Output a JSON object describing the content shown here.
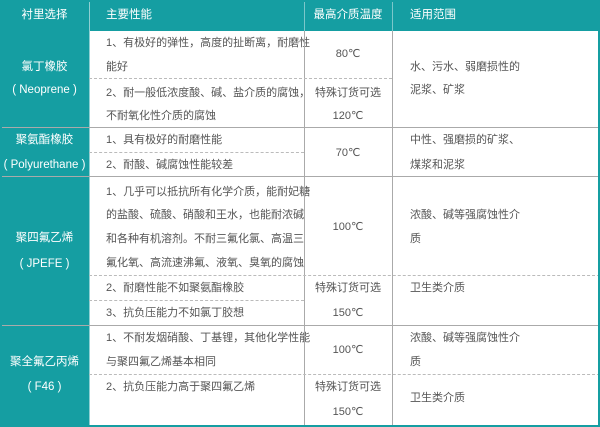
{
  "header": {
    "col1": "衬里选择",
    "col2": "主要性能",
    "col3": "最高介质温度",
    "col4": "适用范围"
  },
  "rows": [
    {
      "name": "氯丁橡胶",
      "name_en": "( Neoprene )",
      "props": [
        "1、有极好的弹性，高度的扯断离，耐磨性",
        "能好",
        "2、耐一般低浓度酸、碱、盐介质的腐蚀，",
        "不耐氧化性介质的腐蚀"
      ],
      "temp": [
        "80℃",
        "特殊订货可选",
        "120℃"
      ],
      "scope": [
        "水、污水、弱磨损性的",
        "泥浆、矿浆"
      ]
    },
    {
      "name": "聚氨酯橡胶",
      "name_en": "( Polyurethane )",
      "props": [
        "1、具有极好的耐磨性能",
        "2、耐酸、碱腐蚀性能较差"
      ],
      "temp": [
        "70℃"
      ],
      "scope": [
        "中性、强磨损的矿浆、",
        "煤浆和泥浆"
      ]
    },
    {
      "name": "聚四氟乙烯",
      "name_en": "( JPEFE )",
      "props": [
        "1、几乎可以抵抗所有化学介质，能耐妃糖",
        "的盐酸、硫酸、硝酸和王水，也能耐浓碱",
        "和各种有机溶剂。不耐三氟化氯、高温三",
        "氟化氧、高流速沸氟、液氧、臭氧的腐蚀",
        "2、耐磨性能不如聚氨酯橡胶",
        "3、抗负压能力不如氯丁胶想"
      ],
      "temp": [
        "100℃",
        "特殊订货可选",
        "150℃"
      ],
      "scope": [
        "浓酸、碱等强腐蚀性介",
        "质",
        "卫生类介质"
      ]
    },
    {
      "name": "聚全氟乙丙烯",
      "name_en": "( F46 )",
      "props": [
        "1、不耐发烟硝酸、丁基锂，其他化学性能",
        "与聚四氟乙烯基本相同",
        "2、抗负压能力高于聚四氟乙烯"
      ],
      "temp": [
        "100℃",
        "特殊订货可选",
        "150℃"
      ],
      "scope": [
        "浓酸、碱等强腐蚀性介",
        "质",
        "卫生类介质"
      ]
    }
  ]
}
